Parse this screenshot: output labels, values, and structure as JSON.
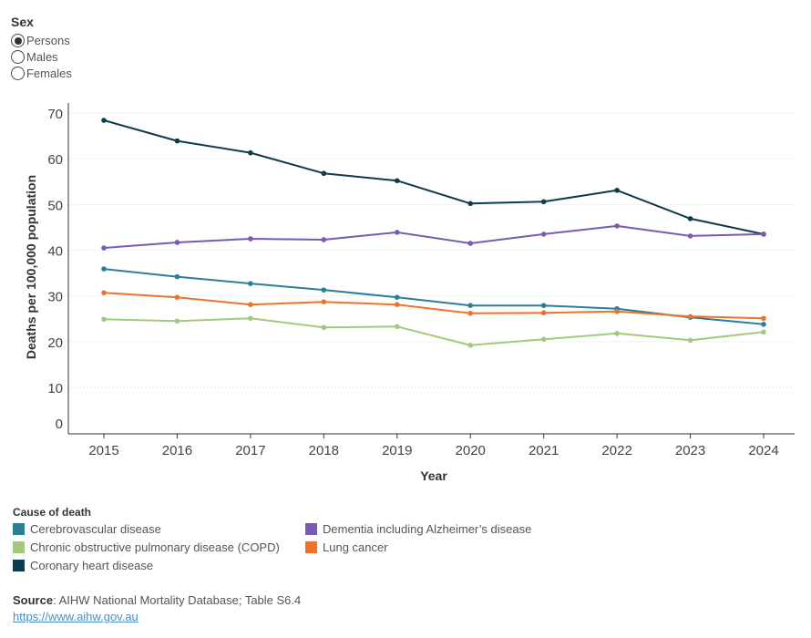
{
  "filter": {
    "title": "Sex",
    "options": [
      "Persons",
      "Males",
      "Females"
    ],
    "selected": "Persons"
  },
  "chart_data": {
    "type": "line",
    "title": "",
    "xlabel": "Year",
    "ylabel": "Deaths per 100,000 population",
    "x": [
      "2015",
      "2016",
      "2017",
      "2018",
      "2019",
      "2020",
      "2021",
      "2022",
      "2023",
      "2024"
    ],
    "ylim": [
      0,
      70
    ],
    "yticks": [
      0,
      10,
      20,
      30,
      40,
      50,
      60,
      70
    ],
    "grid": true,
    "series": [
      {
        "name": "Coronary heart disease",
        "color": "#0e3b4d",
        "values": [
          68.4,
          63.9,
          61.3,
          56.8,
          55.2,
          50.2,
          50.6,
          53.1,
          46.9,
          43.5
        ]
      },
      {
        "name": "Dementia including Alzheimer’s disease",
        "color": "#7b5bb1",
        "values": [
          40.5,
          41.7,
          42.5,
          42.3,
          43.9,
          41.5,
          43.5,
          45.3,
          43.1,
          43.5
        ]
      },
      {
        "name": "Cerebrovascular disease",
        "color": "#2a7f96",
        "values": [
          35.9,
          34.2,
          32.7,
          31.3,
          29.7,
          27.9,
          27.9,
          27.2,
          25.3,
          23.8
        ]
      },
      {
        "name": "Lung cancer",
        "color": "#f0722a",
        "values": [
          30.7,
          29.7,
          28.1,
          28.7,
          28.1,
          26.2,
          26.3,
          26.6,
          25.5,
          25.1
        ]
      },
      {
        "name": "Chronic obstructive pulmonary disease (COPD)",
        "color": "#a3c97e",
        "values": [
          24.9,
          24.5,
          25.1,
          23.1,
          23.3,
          19.2,
          20.5,
          21.8,
          20.3,
          22.1
        ]
      }
    ]
  },
  "legend": {
    "title": "Cause of death",
    "items": [
      {
        "label": "Cerebrovascular disease",
        "color": "#2a7f96"
      },
      {
        "label": "Dementia including Alzheimer’s disease",
        "color": "#7b5bb1"
      },
      {
        "label": "Chronic obstructive pulmonary disease (COPD)",
        "color": "#a3c97e"
      },
      {
        "label": "Lung cancer",
        "color": "#f0722a"
      },
      {
        "label": "Coronary heart disease",
        "color": "#0e3b4d"
      }
    ]
  },
  "source": {
    "label": "Source",
    "text": ": AIHW National Mortality Database; Table S6.4",
    "link": "https://www.aihw.gov.au"
  }
}
